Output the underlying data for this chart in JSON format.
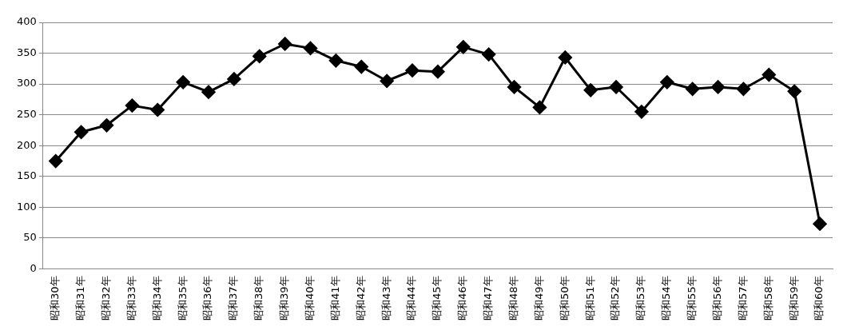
{
  "chart_data": {
    "type": "line",
    "categories": [
      "昭和30年",
      "昭和31年",
      "昭和32年",
      "昭和33年",
      "昭和34年",
      "昭和35年",
      "昭和36年",
      "昭和37年",
      "昭和38年",
      "昭和39年",
      "昭和40年",
      "昭和41年",
      "昭和42年",
      "昭和43年",
      "昭和44年",
      "昭和45年",
      "昭和46年",
      "昭和47年",
      "昭和48年",
      "昭和49年",
      "昭和50年",
      "昭和51年",
      "昭和52年",
      "昭和53年",
      "昭和54年",
      "昭和55年",
      "昭和56年",
      "昭和57年",
      "昭和58年",
      "昭和59年",
      "昭和60年"
    ],
    "series": [
      {
        "color": "#000000",
        "values": [
          175,
          222,
          233,
          265,
          258,
          303,
          287,
          308,
          345,
          365,
          358,
          338,
          328,
          305,
          322,
          320,
          360,
          348,
          295,
          262,
          343,
          290,
          295,
          255,
          303,
          292,
          295,
          292,
          315,
          288,
          73
        ]
      }
    ],
    "ylim": [
      0,
      400
    ],
    "yticks": [
      0,
      50,
      100,
      150,
      200,
      250,
      300,
      350,
      400
    ],
    "grid": "y",
    "legend": false,
    "marker": "diamond",
    "line_style": "solid"
  }
}
